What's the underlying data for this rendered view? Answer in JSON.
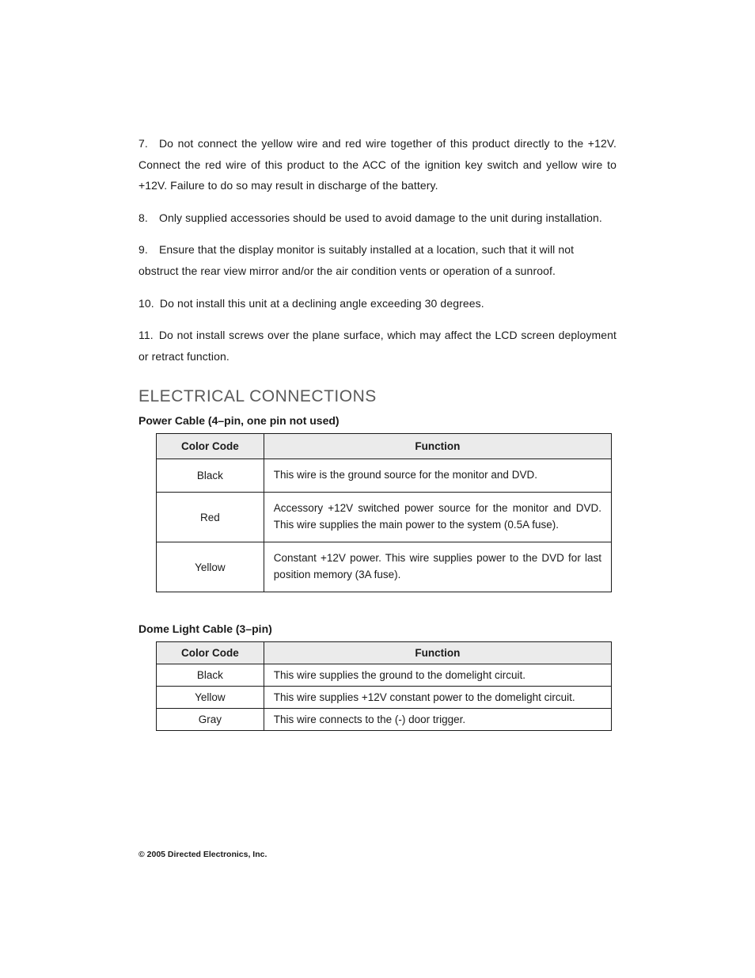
{
  "paragraphs": {
    "p7": "7. Do not connect the yellow wire and red wire together of this product directly to the +12V. Connect the red wire of this product to the ACC of the ignition key switch and yellow wire to +12V. Failure to do so may result in discharge of the battery.",
    "p8": "8. Only supplied accessories should be used to avoid damage to the unit during installation.",
    "p9": "9. Ensure that the display monitor is suitably installed at a location, such that it will not obstruct the rear view mirror and/or the air condition vents or operation of a sunroof.",
    "p10": "10. Do not install this unit at a declining angle exceeding 30 degrees.",
    "p11": "11. Do not install screws over the plane surface, which may affect the LCD screen deployment or retract function."
  },
  "section_title": "ELECTRICAL CONNECTIONS",
  "power_cable": {
    "heading": "Power Cable (4–pin, one pin not used)",
    "col_code": "Color Code",
    "col_func": "Function",
    "rows": [
      {
        "code": "Black",
        "func": "This wire is the ground source for the monitor and DVD."
      },
      {
        "code": "Red",
        "func": "Accessory +12V switched power source for the monitor and DVD. This wire supplies the main power to the system (0.5A fuse)."
      },
      {
        "code": "Yellow",
        "func": "Constant +12V power. This wire supplies power to the DVD for last position memory (3A fuse)."
      }
    ]
  },
  "dome_cable": {
    "heading": "Dome Light Cable (3–pin)",
    "col_code": "Color Code",
    "col_func": "Function",
    "rows": [
      {
        "code": "Black",
        "func": "This wire supplies the ground to the domelight circuit."
      },
      {
        "code": "Yellow",
        "func": "This wire supplies +12V constant power to the domelight circuit."
      },
      {
        "code": "Gray",
        "func": "This wire connects to the (-) door trigger."
      }
    ]
  },
  "footer": "© 2005 Directed Electronics, Inc."
}
